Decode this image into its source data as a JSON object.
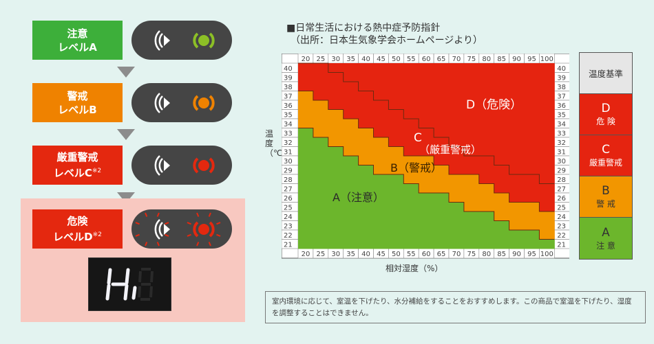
{
  "levels": [
    {
      "line1": "注意",
      "line2": "レベルA",
      "sup": "",
      "color": "#3daf3a",
      "lamp": "#8cbf26",
      "flash": false
    },
    {
      "line1": "警戒",
      "line2": "レベルB",
      "sup": "",
      "color": "#ef8200",
      "lamp": "#ef8200",
      "flash": false
    },
    {
      "line1": "厳重警戒",
      "line2": "レベルC",
      "sup": "※2",
      "color": "#e4280f",
      "lamp": "#e4280f",
      "flash": false
    },
    {
      "line1": "危険",
      "line2": "レベルD",
      "sup": "※2",
      "color": "#e4280f",
      "lamp": "#e4280f",
      "flash": true
    }
  ],
  "display": {
    "text": "Hi"
  },
  "chart": {
    "title_line1": "■日常生活における熱中症予防指針",
    "title_line2": "（出所：日本生気象学会ホームページより）",
    "xlabel": "相対湿度（%）",
    "ylabel": "温度（℃）",
    "zone_labels": {
      "D": "D（危険）",
      "C_top": "C",
      "C_bottom": "（厳重警戒）",
      "B": "B（警戒）",
      "A": "A（注意）"
    }
  },
  "chart_data": {
    "type": "heatmap",
    "title": "日常生活における熱中症予防指針",
    "xlabel": "相対湿度（%）",
    "ylabel": "温度（℃）",
    "x": [
      20,
      25,
      30,
      35,
      40,
      45,
      50,
      55,
      60,
      65,
      70,
      75,
      80,
      85,
      90,
      95,
      100
    ],
    "y": [
      40,
      39,
      38,
      37,
      36,
      35,
      34,
      33,
      32,
      31,
      30,
      29,
      28,
      27,
      26,
      25,
      24,
      23,
      22,
      21
    ],
    "thresholds_note": "minimum temperature for each level per humidity column",
    "D_min": [
      41,
      41,
      40,
      39,
      38,
      37,
      36,
      35,
      34,
      33,
      32,
      31,
      31,
      30,
      29,
      29,
      28
    ],
    "C_min": [
      38,
      37,
      36,
      35,
      34,
      33,
      32,
      31,
      31,
      30,
      29,
      29,
      28,
      27,
      26,
      26,
      25
    ],
    "B_min": [
      34,
      33,
      32,
      31,
      30,
      29,
      29,
      28,
      27,
      27,
      26,
      25,
      25,
      24,
      23,
      23,
      22
    ],
    "colors": {
      "D": "#e52410",
      "C": "#e52410",
      "B": "#f29600",
      "A": "#6cb62c"
    }
  },
  "legend": {
    "header": "温度基準",
    "items": [
      {
        "code": "D",
        "label": "危 険",
        "color": "#e52410",
        "text": "#fff"
      },
      {
        "code": "C",
        "label": "厳重警戒",
        "color": "#e52410",
        "text": "#fff"
      },
      {
        "code": "B",
        "label": "警 戒",
        "color": "#f29600",
        "text": "#333"
      },
      {
        "code": "A",
        "label": "注 意",
        "color": "#6cb62c",
        "text": "#333"
      }
    ]
  },
  "note": "室内環境に応じて、室温を下げたり、水分補給をすることをおすすめします。この商品で室温を下げたり、湿度を調整することはできません。"
}
